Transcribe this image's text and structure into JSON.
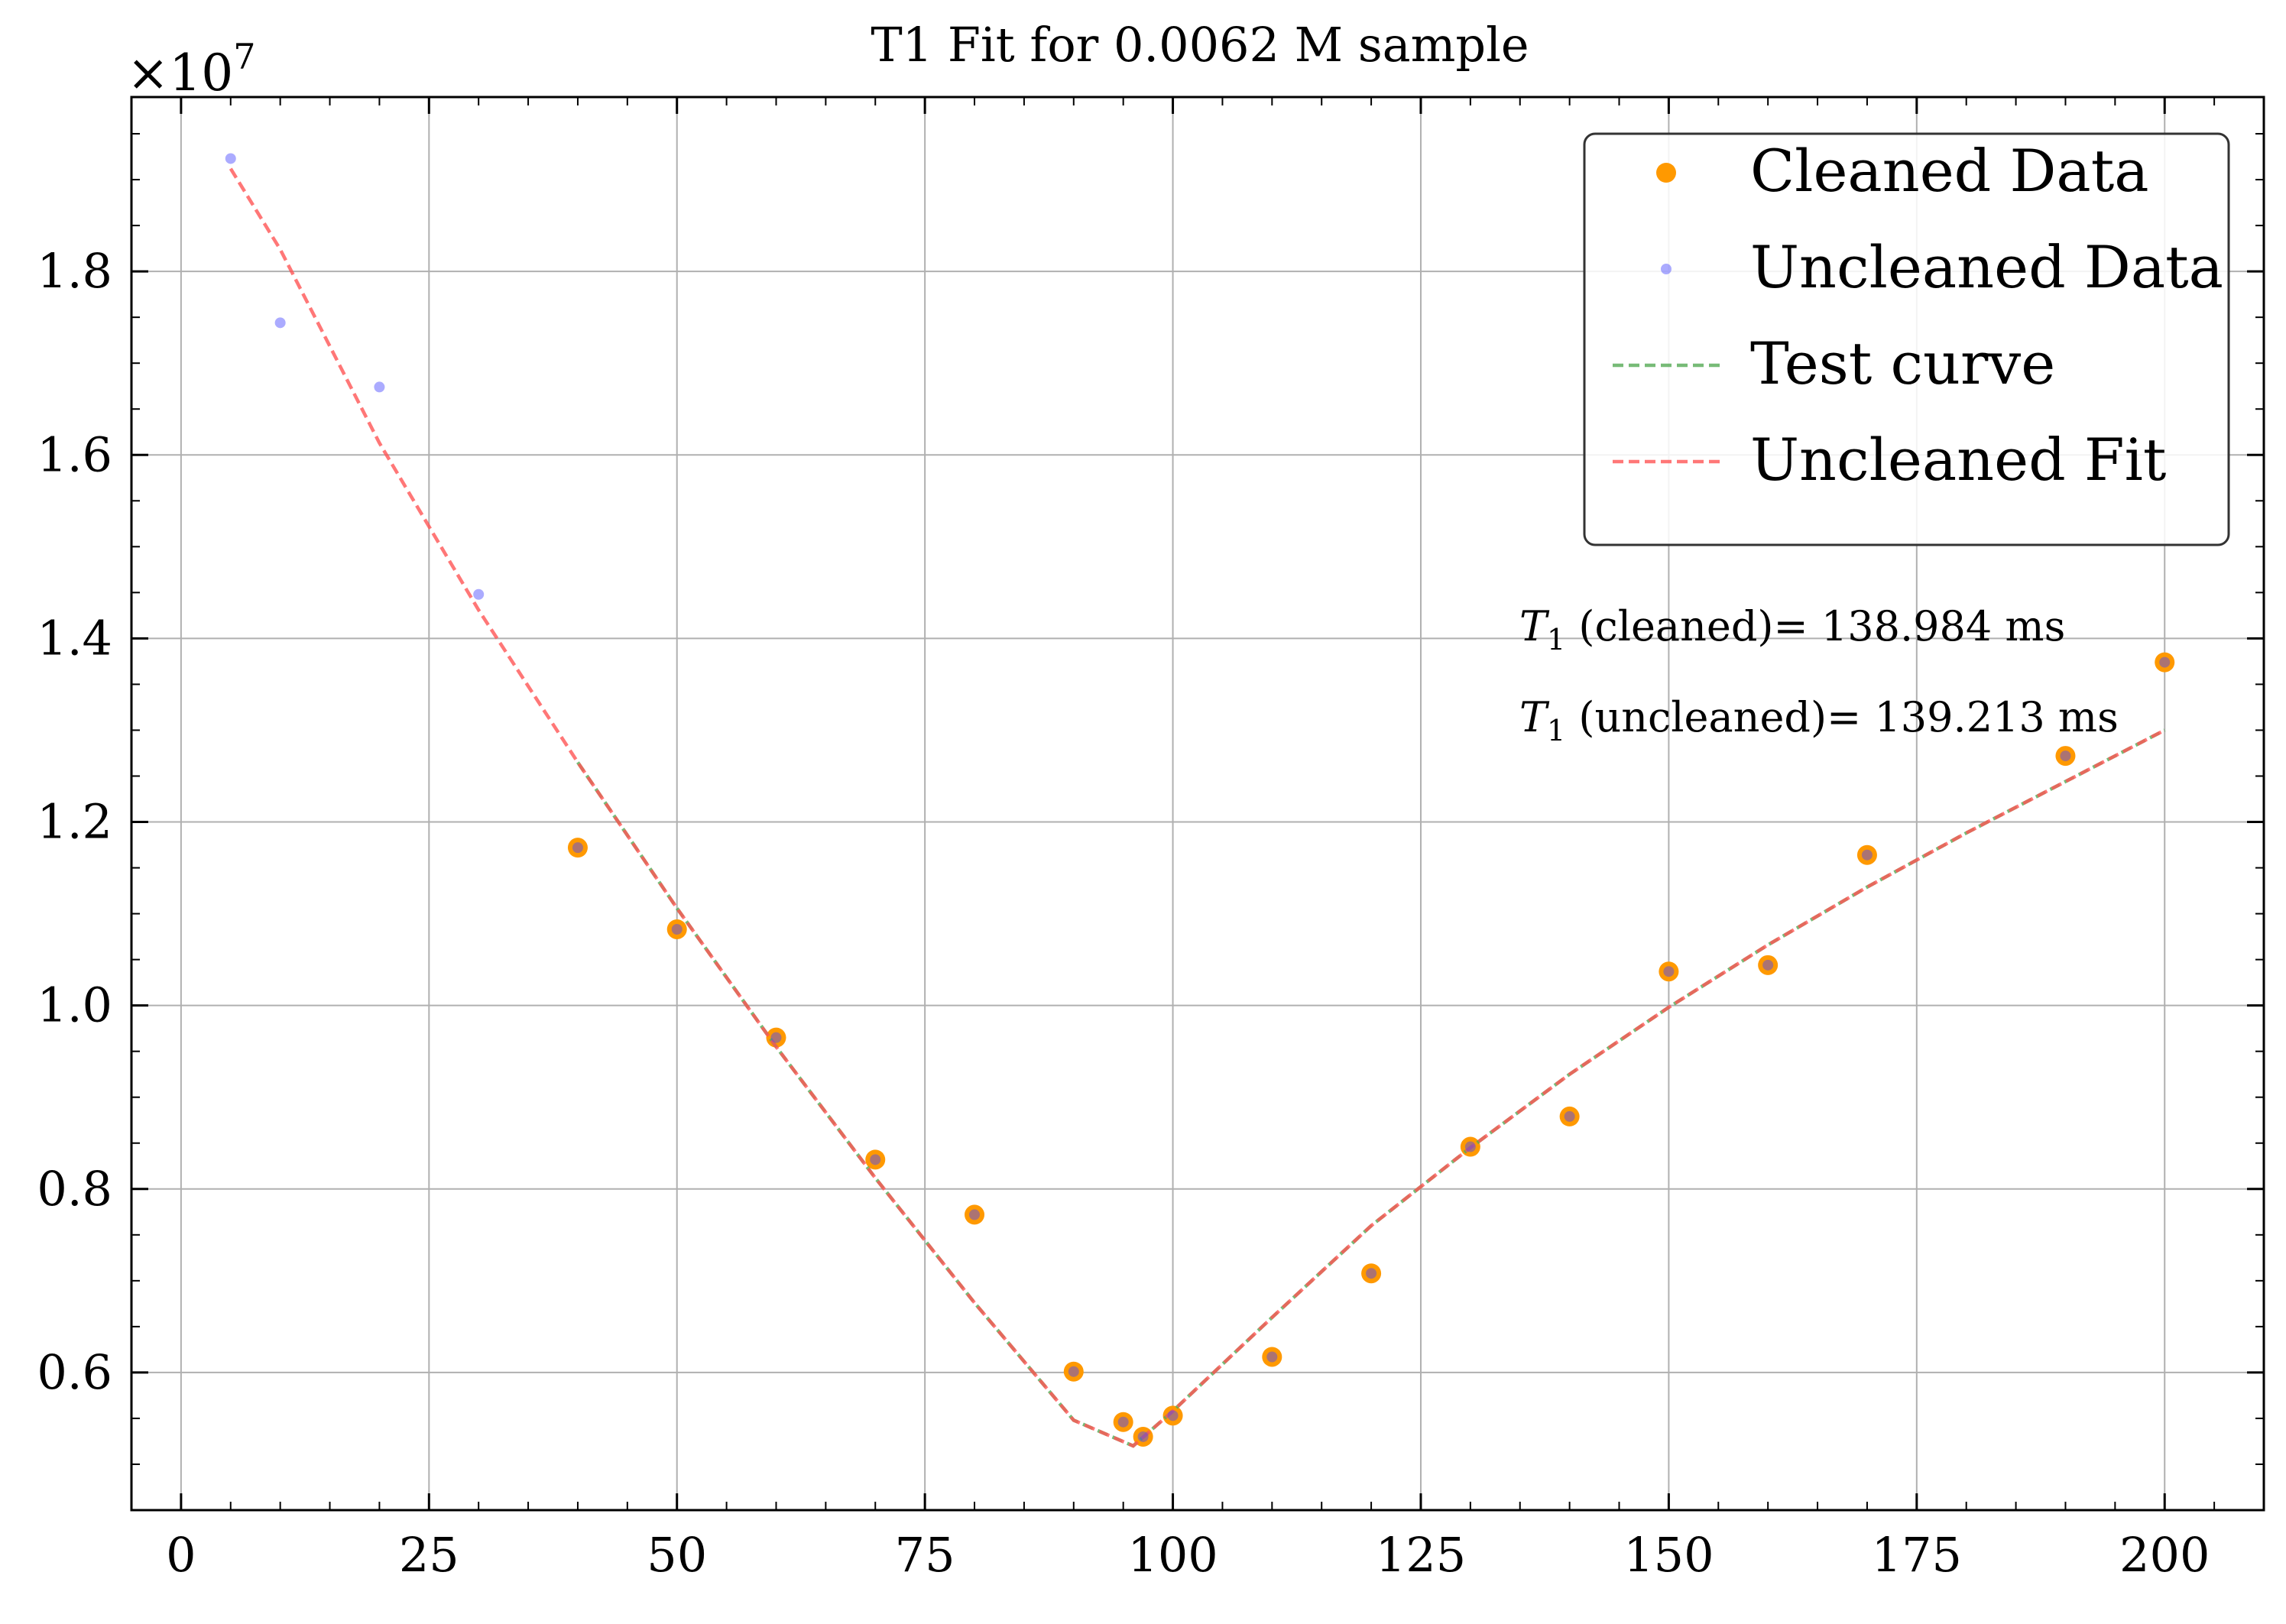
{
  "chart_data": {
    "type": "scatter",
    "title": "T1 Fit for 0.0062 M sample",
    "xlabel": "",
    "ylabel": "",
    "xlim": [
      -5,
      210
    ],
    "ylim": [
      0.45,
      1.99
    ],
    "y_scale_note": "×10^7",
    "y_offset_label": "×10",
    "y_offset_exponent": "7",
    "grid": true,
    "legend_position": "upper right",
    "x_ticks": [
      "0",
      "25",
      "50",
      "75",
      "100",
      "125",
      "150",
      "175",
      "200"
    ],
    "y_ticks": [
      "0.6",
      "0.8",
      "1.0",
      "1.2",
      "1.4",
      "1.6",
      "1.8"
    ],
    "series": [
      {
        "name": "Cleaned Data",
        "kind": "scatter",
        "color": "#ff9900",
        "x": [
          40,
          50,
          60,
          70,
          80,
          90,
          95,
          97,
          100,
          110,
          120,
          130,
          140,
          150,
          160,
          170,
          190,
          200
        ],
        "y": [
          1.172,
          1.083,
          0.965,
          0.832,
          0.772,
          0.601,
          0.546,
          0.53,
          0.553,
          0.617,
          0.708,
          0.846,
          0.879,
          1.037,
          1.044,
          1.164,
          1.272,
          1.374
        ]
      },
      {
        "name": "Uncleaned Data",
        "kind": "scatter",
        "color": "#4444ff",
        "x": [
          5,
          10,
          20,
          30,
          40,
          50,
          60,
          70,
          80,
          90,
          95,
          97,
          100,
          110,
          120,
          130,
          140,
          150,
          160,
          170,
          190,
          200
        ],
        "y": [
          1.923,
          1.744,
          1.674,
          1.448,
          1.172,
          1.083,
          0.965,
          0.832,
          0.772,
          0.601,
          0.546,
          0.53,
          0.553,
          0.617,
          0.708,
          0.846,
          0.879,
          1.037,
          1.044,
          1.164,
          1.272,
          1.374
        ]
      },
      {
        "name": "Test curve",
        "kind": "line",
        "dash": true,
        "color": "#55aa55",
        "x": [
          40,
          50,
          60,
          70,
          80,
          90,
          96,
          100,
          110,
          120,
          130,
          140,
          150,
          160,
          170,
          180,
          190,
          200
        ],
        "y": [
          1.265,
          1.106,
          0.955,
          0.812,
          0.676,
          0.548,
          0.52,
          0.558,
          0.66,
          0.76,
          0.845,
          0.925,
          0.998,
          1.066,
          1.129,
          1.188,
          1.244,
          1.3
        ]
      },
      {
        "name": "Uncleaned Fit",
        "kind": "line",
        "dash": true,
        "color": "#ff5555",
        "x": [
          5,
          10,
          20,
          30,
          40,
          50,
          60,
          70,
          80,
          90,
          96,
          100,
          110,
          120,
          130,
          140,
          150,
          160,
          170,
          180,
          190,
          200
        ],
        "y": [
          1.912,
          1.824,
          1.613,
          1.431,
          1.265,
          1.106,
          0.955,
          0.812,
          0.676,
          0.548,
          0.52,
          0.558,
          0.66,
          0.76,
          0.845,
          0.925,
          0.998,
          1.066,
          1.129,
          1.188,
          1.244,
          1.3
        ]
      }
    ],
    "annotations": [
      {
        "symbol": "T",
        "subscript": "1",
        "text": " (cleaned)= 138.984 ms"
      },
      {
        "symbol": "T",
        "subscript": "1",
        "text": " (uncleaned)= 139.213 ms"
      }
    ]
  }
}
